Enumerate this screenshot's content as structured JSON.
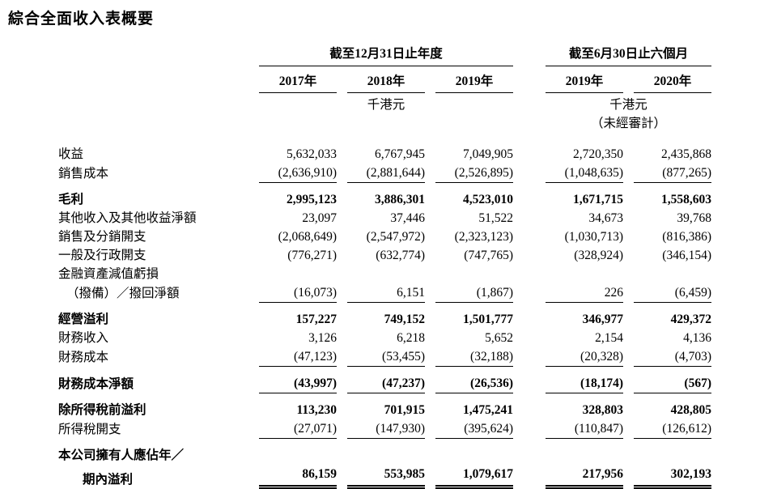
{
  "title": "綜合全面收入表概要",
  "table": {
    "groups": [
      {
        "label": "截至12月31日止年度",
        "unit": "千港元",
        "note": ""
      },
      {
        "label": "截至6月30日止六個月",
        "unit": "千港元",
        "note": "（未經審計）"
      }
    ],
    "years": [
      "2017年",
      "2018年",
      "2019年",
      "2019年",
      "2020年"
    ],
    "rows": [
      {
        "label": "收益",
        "values": [
          "5,632,033",
          "6,767,945",
          "7,049,905",
          "2,720,350",
          "2,435,868"
        ]
      },
      {
        "label": "銷售成本",
        "values": [
          "(2,636,910)",
          "(2,881,644)",
          "(2,526,895)",
          "(1,048,635)",
          "(877,265)"
        ],
        "underline": true
      },
      {
        "label": "毛利",
        "values": [
          "2,995,123",
          "3,886,301",
          "4,523,010",
          "1,671,715",
          "1,558,603"
        ],
        "bold": true,
        "spacer": true
      },
      {
        "label": "其他收入及其他收益淨額",
        "values": [
          "23,097",
          "37,446",
          "51,522",
          "34,673",
          "39,768"
        ]
      },
      {
        "label": "銷售及分銷開支",
        "values": [
          "(2,068,649)",
          "(2,547,972)",
          "(2,323,123)",
          "(1,030,713)",
          "(816,386)"
        ]
      },
      {
        "label": "一般及行政開支",
        "values": [
          "(776,271)",
          "(632,774)",
          "(747,765)",
          "(328,924)",
          "(346,154)"
        ]
      },
      {
        "label": "金融資產減值虧損",
        "values": []
      },
      {
        "label": "（撥備）／撥回淨額",
        "values": [
          "(16,073)",
          "6,151",
          "(1,867)",
          "226",
          "(6,459)"
        ],
        "underline": true,
        "indent": "sm"
      },
      {
        "label": "經營溢利",
        "values": [
          "157,227",
          "749,152",
          "1,501,777",
          "346,977",
          "429,372"
        ],
        "bold": true,
        "spacer": true
      },
      {
        "label": "財務收入",
        "values": [
          "3,126",
          "6,218",
          "5,652",
          "2,154",
          "4,136"
        ]
      },
      {
        "label": "財務成本",
        "values": [
          "(47,123)",
          "(53,455)",
          "(32,188)",
          "(20,328)",
          "(4,703)"
        ],
        "underline": true
      },
      {
        "label": "財務成本淨額",
        "values": [
          "(43,997)",
          "(47,237)",
          "(26,536)",
          "(18,174)",
          "(567)"
        ],
        "bold": true,
        "underline": true,
        "spacer": true
      },
      {
        "label": "除所得稅前溢利",
        "values": [
          "113,230",
          "701,915",
          "1,475,241",
          "328,803",
          "428,805"
        ],
        "bold": true,
        "spacer": true
      },
      {
        "label": "所得稅開支",
        "values": [
          "(27,071)",
          "(147,930)",
          "(395,624)",
          "(110,847)",
          "(126,612)"
        ],
        "underline": true
      },
      {
        "label": "本公司擁有人應佔年／",
        "values": [],
        "bold": true,
        "spacer": true
      },
      {
        "label": "期內溢利",
        "values": [
          "86,159",
          "553,985",
          "1,079,617",
          "217,956",
          "302,193"
        ],
        "bold": true,
        "double": true,
        "indent": "lg"
      }
    ]
  }
}
